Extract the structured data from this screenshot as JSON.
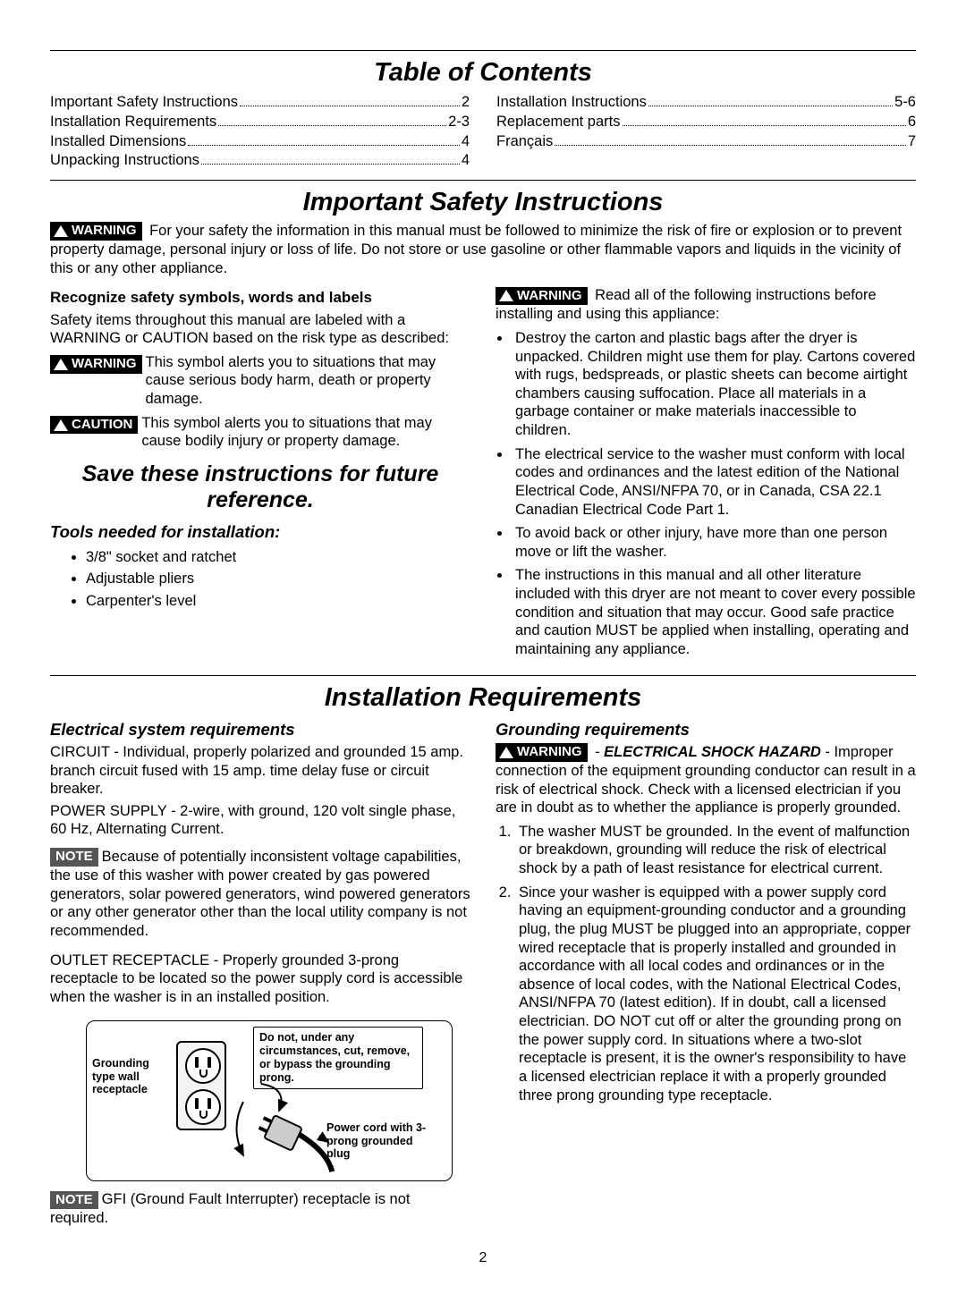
{
  "page_number": "2",
  "headings": {
    "toc": "Table of Contents",
    "safety": "Important Safety Instructions",
    "save": "Save these instructions for future reference.",
    "install_req": "Installation Requirements"
  },
  "toc_left": [
    {
      "label": "Important Safety Instructions",
      "page": "2"
    },
    {
      "label": "Installation Requirements",
      "page": "2-3"
    },
    {
      "label": "Installed Dimensions",
      "page": "4"
    },
    {
      "label": "Unpacking Instructions",
      "page": "4"
    }
  ],
  "toc_right": [
    {
      "label": "Installation Instructions",
      "page": "5-6"
    },
    {
      "label": "Replacement parts",
      "page": "6"
    },
    {
      "label": "Français",
      "page": "7"
    }
  ],
  "badges": {
    "warning": "WARNING",
    "caution": "CAUTION",
    "note": "NOTE"
  },
  "safety_top": "For your safety the information in this manual must be followed to minimize the risk of fire or explosion or to prevent property damage, personal injury or loss of life. Do not store or use gasoline or other flammable vapors and liquids in the vicinity of this or any other appliance.",
  "recognize_head": "Recognize safety symbols, words and labels",
  "recognize_body": "Safety items throughout this manual are labeled with a WARNING or CAUTION based on the risk type as described:",
  "warning_desc": "This symbol alerts you to situations that may cause serious body harm, death or property damage.",
  "caution_desc": "This symbol alerts you to situations that may cause bodily injury or property damage.",
  "tools_head": "Tools needed for installation:",
  "tools": [
    "3/8\" socket and ratchet",
    "Adjustable pliers",
    "Carpenter's level"
  ],
  "right_warn_intro": "Read all of the following instructions before installing and using this appliance:",
  "right_bullets": [
    "Destroy the carton and plastic bags after the dryer is unpacked. Children might use them for play. Cartons covered with rugs, bedspreads, or plastic sheets can become airtight chambers causing suffocation. Place all materials in a garbage container or make materials inaccessible to children.",
    "The electrical service to the washer must conform with local codes and ordinances and the latest edition of the National Electrical Code, ANSI/NFPA 70, or in Canada, CSA 22.1 Canadian Electrical Code Part 1.",
    "To avoid back or other injury, have more than one person move or lift the washer.",
    "The instructions in this manual and all other literature included with this dryer are not meant to cover every possible condition and situation that may occur. Good safe practice and caution MUST be applied when installing, operating and maintaining any appliance."
  ],
  "elec_head": "Electrical system requirements",
  "elec_circuit": "CIRCUIT - Individual, properly polarized and grounded 15 amp. branch circuit fused with 15 amp. time delay fuse or circuit breaker.",
  "elec_power": "POWER SUPPLY - 2-wire, with ground, 120 volt single phase, 60 Hz, Alternating Current.",
  "elec_note": "Because of potentially inconsistent voltage capabilities, the use of this washer with power created by gas powered generators, solar powered generators, wind powered generators or any other generator other than the local utility company is not recommended.",
  "elec_outlet": "OUTLET RECEPTACLE - Properly grounded 3-prong receptacle to be located so the power supply cord is accessible when the washer is in an installed position.",
  "gfi_note": "GFI (Ground Fault Interrupter) receptacle is not required.",
  "ground_head": "Grounding requirements",
  "ground_hazard": "ELECTRICAL SHOCK HAZARD",
  "ground_warn": "Improper connection of the equipment grounding conductor can result in a risk of electrical shock. Check with a licensed electrician if you are in doubt as to whether the appliance is properly grounded.",
  "ground_list": [
    "The washer MUST be grounded. In the event of malfunction or breakdown, grounding will reduce the risk of electrical shock by a path of least resistance for electrical current.",
    "Since your washer is equipped with a power supply cord having an equipment-grounding conductor and a grounding plug, the plug MUST be plugged into an appropriate, copper wired receptacle that is properly installed and grounded in accordance with all local codes and ordinances or in the absence of local codes, with the National Electrical Codes, ANSI/NFPA 70 (latest edition). If in doubt, call a licensed electrician. DO NOT cut off or alter the grounding prong on the power supply cord. In situations where a two-slot receptacle is present, it is the owner's responsibility to have a licensed electrician replace it with a properly grounded three prong grounding type receptacle."
  ],
  "diagram": {
    "receptacle_label": "Grounding type wall receptacle",
    "donot_label": "Do not, under any circumstances, cut, remove, or bypass the grounding prong.",
    "plug_label": "Power cord with 3-prong grounded plug"
  }
}
